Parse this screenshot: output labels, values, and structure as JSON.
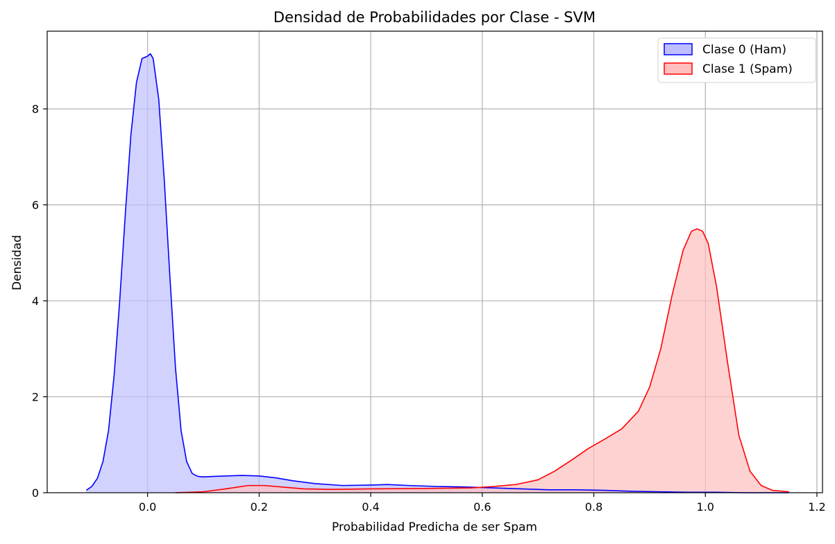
{
  "chart_data": {
    "type": "area",
    "title": "Densidad de Probabilidades por Clase - SVM",
    "xlabel": "Probabilidad Predicha de ser Spam",
    "ylabel": "Densidad",
    "xlim": [
      -0.18,
      1.21
    ],
    "ylim": [
      0,
      9.62
    ],
    "xticks": [
      0.0,
      0.2,
      0.4,
      0.6,
      0.8,
      1.0,
      1.2
    ],
    "xtick_labels": [
      "0.0",
      "0.2",
      "0.4",
      "0.6",
      "0.8",
      "1.0",
      "1.2"
    ],
    "yticks": [
      0,
      2,
      4,
      6,
      8
    ],
    "ytick_labels": [
      "0",
      "2",
      "4",
      "6",
      "8"
    ],
    "grid": true,
    "legend_position": "top-right",
    "series": [
      {
        "name": "Clase 0 (Ham)",
        "color": "#0000ff",
        "fill": "#bfbfff",
        "x": [
          -0.11,
          -0.1,
          -0.09,
          -0.08,
          -0.07,
          -0.06,
          -0.05,
          -0.04,
          -0.03,
          -0.02,
          -0.01,
          0.0,
          0.005,
          0.01,
          0.02,
          0.03,
          0.04,
          0.05,
          0.06,
          0.07,
          0.08,
          0.09,
          0.1,
          0.12,
          0.14,
          0.17,
          0.2,
          0.23,
          0.26,
          0.3,
          0.35,
          0.4,
          0.43,
          0.47,
          0.52,
          0.57,
          0.62,
          0.67,
          0.72,
          0.77,
          0.82,
          0.87,
          0.92,
          0.97,
          1.02,
          1.07,
          1.1,
          1.15
        ],
        "y": [
          0.05,
          0.13,
          0.3,
          0.65,
          1.3,
          2.45,
          4.0,
          5.8,
          7.45,
          8.55,
          9.05,
          9.1,
          9.15,
          9.05,
          8.2,
          6.5,
          4.5,
          2.6,
          1.3,
          0.65,
          0.4,
          0.34,
          0.33,
          0.34,
          0.35,
          0.36,
          0.35,
          0.31,
          0.25,
          0.19,
          0.15,
          0.16,
          0.17,
          0.15,
          0.13,
          0.12,
          0.1,
          0.08,
          0.06,
          0.06,
          0.05,
          0.03,
          0.02,
          0.01,
          0.01,
          0.0,
          0.0,
          0.0
        ]
      },
      {
        "name": "Clase 1 (Spam)",
        "color": "#ff0000",
        "fill": "#ffbfbf",
        "x": [
          0.05,
          0.1,
          0.14,
          0.18,
          0.21,
          0.24,
          0.28,
          0.33,
          0.4,
          0.5,
          0.58,
          0.62,
          0.66,
          0.7,
          0.73,
          0.76,
          0.79,
          0.82,
          0.85,
          0.88,
          0.9,
          0.92,
          0.94,
          0.96,
          0.975,
          0.985,
          0.995,
          1.005,
          1.02,
          1.04,
          1.06,
          1.08,
          1.1,
          1.12,
          1.15
        ],
        "y": [
          0.0,
          0.02,
          0.08,
          0.15,
          0.15,
          0.12,
          0.08,
          0.07,
          0.08,
          0.09,
          0.1,
          0.13,
          0.17,
          0.27,
          0.45,
          0.68,
          0.92,
          1.12,
          1.33,
          1.7,
          2.2,
          3.0,
          4.1,
          5.05,
          5.45,
          5.5,
          5.45,
          5.2,
          4.3,
          2.7,
          1.2,
          0.45,
          0.15,
          0.05,
          0.02
        ]
      }
    ]
  }
}
